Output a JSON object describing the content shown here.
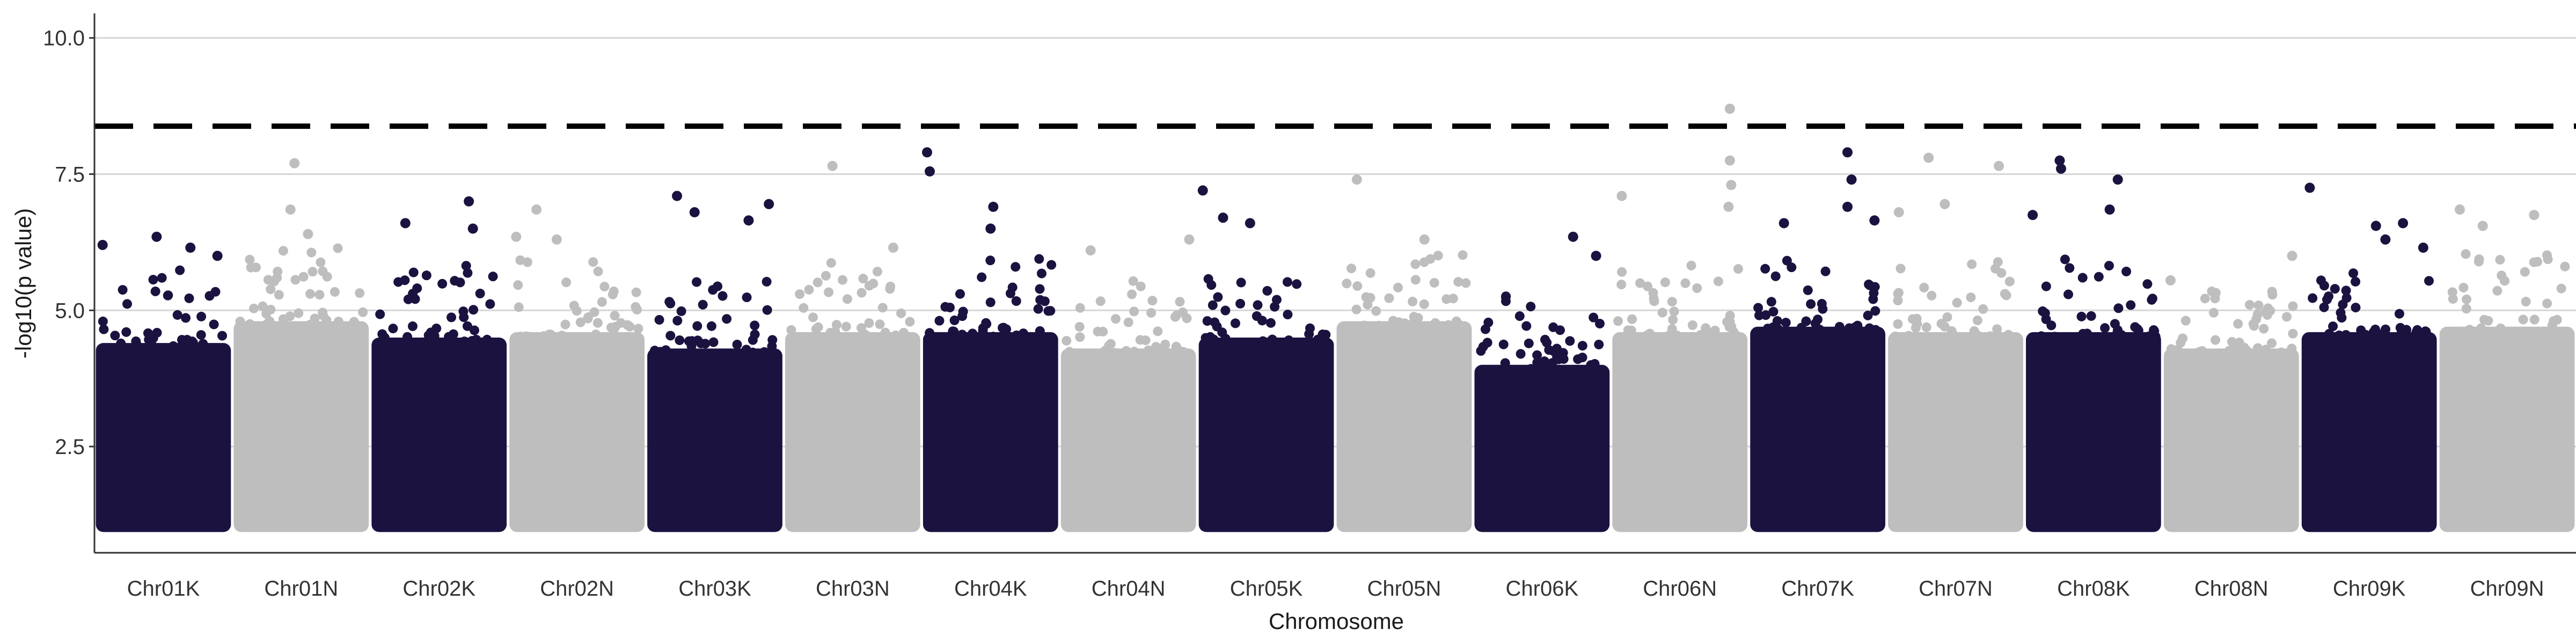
{
  "chart_data": {
    "type": "scatter",
    "title": "",
    "xlabel": "Chromosome",
    "ylabel": "-log10(p value)",
    "ylim": [
      0.55,
      10.45
    ],
    "yticks": [
      2.5,
      5.0,
      7.5,
      10.0
    ],
    "ytick_labels": [
      "2.5",
      "5.0",
      "7.5",
      "10.0"
    ],
    "significance_threshold": 8.38,
    "threshold_style": "dashed",
    "grid": "horizontal major only",
    "legend": "none",
    "base_level": 1.0,
    "categories": [
      "Chr01K",
      "Chr01N",
      "Chr02K",
      "Chr02N",
      "Chr03K",
      "Chr03N",
      "Chr04K",
      "Chr04N",
      "Chr05K",
      "Chr05N",
      "Chr06K",
      "Chr06N",
      "Chr07K",
      "Chr07N",
      "Chr08K",
      "Chr08N",
      "Chr09K",
      "Chr09N"
    ],
    "point_colors": [
      "#1c1240",
      "#bebebe"
    ],
    "dense_band_top": [
      4.4,
      4.8,
      4.5,
      4.6,
      4.3,
      4.6,
      4.6,
      4.3,
      4.5,
      4.8,
      4.0,
      4.6,
      4.7,
      4.6,
      4.6,
      4.3,
      4.6,
      4.7
    ],
    "top_points": [
      {
        "chr": "Chr01K",
        "pos": 0.05,
        "y": 6.2
      },
      {
        "chr": "Chr01K",
        "pos": 0.45,
        "y": 6.35
      },
      {
        "chr": "Chr01K",
        "pos": 0.7,
        "y": 6.15
      },
      {
        "chr": "Chr01K",
        "pos": 0.9,
        "y": 6.0
      },
      {
        "chr": "Chr01N",
        "pos": 0.45,
        "y": 7.7
      },
      {
        "chr": "Chr01N",
        "pos": 0.42,
        "y": 6.85
      },
      {
        "chr": "Chr01N",
        "pos": 0.55,
        "y": 6.4
      },
      {
        "chr": "Chr02K",
        "pos": 0.25,
        "y": 6.6
      },
      {
        "chr": "Chr02K",
        "pos": 0.72,
        "y": 7.0
      },
      {
        "chr": "Chr02K",
        "pos": 0.75,
        "y": 6.5
      },
      {
        "chr": "Chr02N",
        "pos": 0.05,
        "y": 6.35
      },
      {
        "chr": "Chr02N",
        "pos": 0.2,
        "y": 6.85
      },
      {
        "chr": "Chr02N",
        "pos": 0.35,
        "y": 6.3
      },
      {
        "chr": "Chr03K",
        "pos": 0.22,
        "y": 7.1
      },
      {
        "chr": "Chr03K",
        "pos": 0.35,
        "y": 6.8
      },
      {
        "chr": "Chr03K",
        "pos": 0.75,
        "y": 6.65
      },
      {
        "chr": "Chr03K",
        "pos": 0.9,
        "y": 6.95
      },
      {
        "chr": "Chr03N",
        "pos": 0.35,
        "y": 7.65
      },
      {
        "chr": "Chr03N",
        "pos": 0.8,
        "y": 6.15
      },
      {
        "chr": "Chr04K",
        "pos": 0.03,
        "y": 7.9
      },
      {
        "chr": "Chr04K",
        "pos": 0.05,
        "y": 7.55
      },
      {
        "chr": "Chr04K",
        "pos": 0.52,
        "y": 6.9
      },
      {
        "chr": "Chr04K",
        "pos": 0.5,
        "y": 6.5
      },
      {
        "chr": "Chr04N",
        "pos": 0.22,
        "y": 6.1
      },
      {
        "chr": "Chr04N",
        "pos": 0.95,
        "y": 6.3
      },
      {
        "chr": "Chr05K",
        "pos": 0.03,
        "y": 7.2
      },
      {
        "chr": "Chr05K",
        "pos": 0.18,
        "y": 6.7
      },
      {
        "chr": "Chr05K",
        "pos": 0.38,
        "y": 6.6
      },
      {
        "chr": "Chr05N",
        "pos": 0.15,
        "y": 7.4
      },
      {
        "chr": "Chr05N",
        "pos": 0.65,
        "y": 6.3
      },
      {
        "chr": "Chr06K",
        "pos": 0.73,
        "y": 6.35
      },
      {
        "chr": "Chr06K",
        "pos": 0.9,
        "y": 6.0
      },
      {
        "chr": "Chr06N",
        "pos": 0.07,
        "y": 7.1
      },
      {
        "chr": "Chr06N",
        "pos": 0.87,
        "y": 8.7
      },
      {
        "chr": "Chr06N",
        "pos": 0.87,
        "y": 7.75
      },
      {
        "chr": "Chr06N",
        "pos": 0.88,
        "y": 7.3
      },
      {
        "chr": "Chr06N",
        "pos": 0.86,
        "y": 6.9
      },
      {
        "chr": "Chr07K",
        "pos": 0.25,
        "y": 6.6
      },
      {
        "chr": "Chr07K",
        "pos": 0.72,
        "y": 7.9
      },
      {
        "chr": "Chr07K",
        "pos": 0.75,
        "y": 7.4
      },
      {
        "chr": "Chr07K",
        "pos": 0.72,
        "y": 6.9
      },
      {
        "chr": "Chr07K",
        "pos": 0.92,
        "y": 6.65
      },
      {
        "chr": "Chr07N",
        "pos": 0.08,
        "y": 6.8
      },
      {
        "chr": "Chr07N",
        "pos": 0.3,
        "y": 7.8
      },
      {
        "chr": "Chr07N",
        "pos": 0.42,
        "y": 6.95
      },
      {
        "chr": "Chr07N",
        "pos": 0.82,
        "y": 7.65
      },
      {
        "chr": "Chr08K",
        "pos": 0.25,
        "y": 7.75
      },
      {
        "chr": "Chr08K",
        "pos": 0.26,
        "y": 7.6
      },
      {
        "chr": "Chr08K",
        "pos": 0.05,
        "y": 6.75
      },
      {
        "chr": "Chr08K",
        "pos": 0.62,
        "y": 6.85
      },
      {
        "chr": "Chr08K",
        "pos": 0.68,
        "y": 7.4
      },
      {
        "chr": "Chr08N",
        "pos": 0.05,
        "y": 5.55
      },
      {
        "chr": "Chr08N",
        "pos": 0.95,
        "y": 6.0
      },
      {
        "chr": "Chr09K",
        "pos": 0.06,
        "y": 7.25
      },
      {
        "chr": "Chr09K",
        "pos": 0.55,
        "y": 6.55
      },
      {
        "chr": "Chr09K",
        "pos": 0.62,
        "y": 6.3
      },
      {
        "chr": "Chr09K",
        "pos": 0.75,
        "y": 6.6
      },
      {
        "chr": "Chr09K",
        "pos": 0.9,
        "y": 6.15
      },
      {
        "chr": "Chr09N",
        "pos": 0.15,
        "y": 6.85
      },
      {
        "chr": "Chr09N",
        "pos": 0.7,
        "y": 6.75
      },
      {
        "chr": "Chr09N",
        "pos": 0.32,
        "y": 6.55
      }
    ]
  }
}
